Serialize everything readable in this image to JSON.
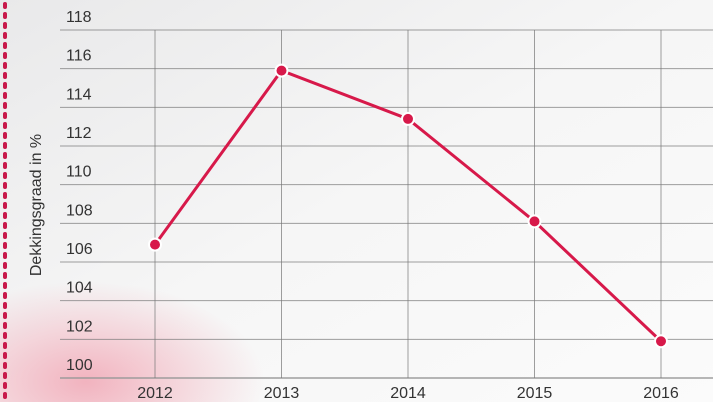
{
  "chart_data": {
    "type": "line",
    "ylabel": "Dekkingsgraad in %",
    "categories": [
      "2012",
      "2013",
      "2014",
      "2015",
      "2016"
    ],
    "series": [
      {
        "name": "Dekkingsgraad",
        "color": "#d7194a",
        "values": [
          106.9,
          115.9,
          113.4,
          108.1,
          101.9
        ]
      }
    ],
    "ylim": [
      100,
      118
    ],
    "yticks": [
      100,
      102,
      104,
      106,
      108,
      110,
      112,
      114,
      116,
      118
    ],
    "grid": true
  }
}
